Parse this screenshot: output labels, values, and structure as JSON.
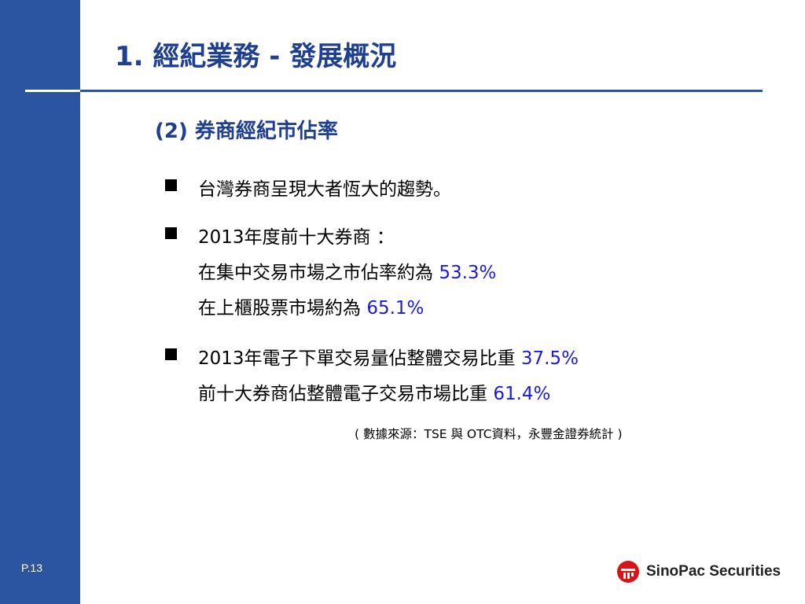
{
  "colors": {
    "sidebar": "#2b55a0",
    "heading": "#1f3f91",
    "highlight": "#1a1ae0",
    "logo_red": "#d7141a"
  },
  "slide": {
    "title": "1. 經紀業務 - 發展概況",
    "subtitle": "(2) 券商經紀市佔率",
    "page_number": "P.13"
  },
  "bullets": [
    {
      "lines": [
        {
          "text": "台灣券商呈現大者恆大的趨勢。",
          "value": ""
        }
      ]
    },
    {
      "lines": [
        {
          "text": "2013年度前十大券商 ：",
          "value": ""
        },
        {
          "text": "在集中交易市場之市佔率約為 ",
          "value": "53.3%"
        },
        {
          "text": "在上櫃股票市場約為 ",
          "value": "65.1%"
        }
      ]
    },
    {
      "lines": [
        {
          "text": "2013年電子下單交易量佔整體交易比重 ",
          "value": "37.5%"
        },
        {
          "text": "前十大券商佔整體電子交易市場比重 ",
          "value": "61.4%"
        }
      ]
    }
  ],
  "source_note": "( 數據來源：TSE 與 OTC資料，永豐金證券統計 )",
  "logo": {
    "icon": "sinopac-logo-icon",
    "text": "SinoPac Securities"
  }
}
